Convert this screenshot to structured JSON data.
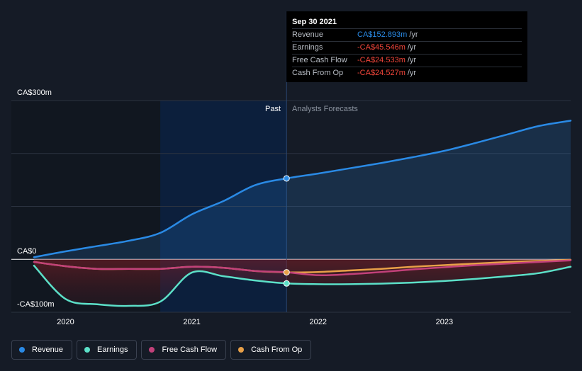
{
  "chart_data": {
    "type": "line",
    "x": [
      2019.75,
      2020.0,
      2020.25,
      2020.5,
      2020.75,
      2021.0,
      2021.25,
      2021.5,
      2021.75,
      2022.0,
      2022.25,
      2022.5,
      2022.75,
      2023.0,
      2023.25,
      2023.5,
      2023.75,
      2024.0
    ],
    "series": [
      {
        "name": "Revenue",
        "color": "#2a8ae5",
        "values": [
          4,
          15,
          25,
          35,
          50,
          85,
          110,
          140,
          152.893,
          162,
          172,
          182,
          193,
          205,
          220,
          236,
          252,
          262
        ]
      },
      {
        "name": "Earnings",
        "color": "#5ce0c8",
        "values": [
          -12,
          -75,
          -85,
          -88,
          -80,
          -25,
          -32,
          -40,
          -45.546,
          -47,
          -47,
          -46,
          -44,
          -41,
          -37,
          -32,
          -26,
          -14
        ]
      },
      {
        "name": "Free Cash Flow",
        "color": "#c2417a",
        "values": [
          -5,
          -13,
          -18,
          -18,
          -18,
          -14,
          -16,
          -22,
          -24.533,
          -30,
          -28,
          -24,
          -19,
          -15,
          -11,
          -8,
          -5,
          -2
        ]
      },
      {
        "name": "Cash From Op",
        "color": "#e8a048",
        "values": [
          -5,
          -13,
          -18,
          -18,
          -18,
          -14,
          -16,
          -22,
          -24.527,
          -24,
          -21,
          -18,
          -14,
          -11,
          -8,
          -5,
          -3,
          -1
        ]
      }
    ],
    "past_end": 2021.75,
    "highlight_start": 2020.75,
    "ylim": [
      -100,
      300
    ],
    "y_tick_labels": [
      "CA$300m",
      "CA$0",
      "-CA$100m"
    ],
    "x_tick_labels": [
      "2020",
      "2021",
      "2022",
      "2023"
    ],
    "past_label": "Past",
    "forecast_label": "Analysts Forecasts",
    "grid": true,
    "legend_position": "bottom-left"
  },
  "tooltip": {
    "title": "Sep 30 2021",
    "unit": "/yr",
    "rows": [
      {
        "name": "Revenue",
        "value": "CA$152.893m",
        "color": "#2a8ae5"
      },
      {
        "name": "Earnings",
        "value": "-CA$45.546m",
        "color": "#f0453a"
      },
      {
        "name": "Free Cash Flow",
        "value": "-CA$24.533m",
        "color": "#f0453a"
      },
      {
        "name": "Cash From Op",
        "value": "-CA$24.527m",
        "color": "#f0453a"
      }
    ]
  },
  "legend": [
    {
      "label": "Revenue",
      "color": "#2a8ae5"
    },
    {
      "label": "Earnings",
      "color": "#5ce0c8"
    },
    {
      "label": "Free Cash Flow",
      "color": "#c2417a"
    },
    {
      "label": "Cash From Op",
      "color": "#e8a048"
    }
  ]
}
